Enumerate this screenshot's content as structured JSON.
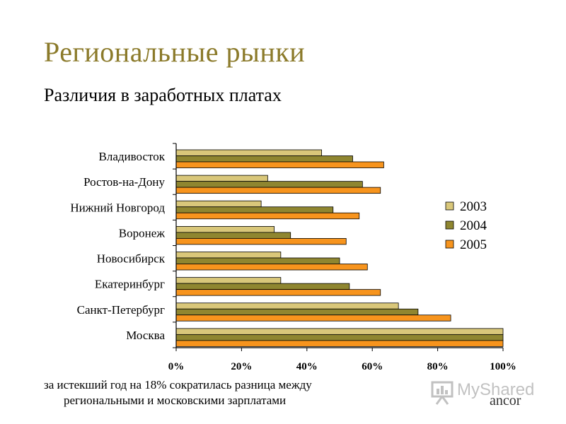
{
  "slide": {
    "title": "Региональные рынки",
    "subtitle": "Различия в заработных платах",
    "caption_line1": "за истекший год на 18% сократилась разница между",
    "caption_line2": "региональными и московскими зарплатами",
    "brand": "ancor",
    "watermark": "MyShared"
  },
  "chart_data": {
    "type": "bar",
    "orientation": "horizontal",
    "title": "",
    "xlabel": "",
    "ylabel": "",
    "categories": [
      "Владивосток",
      "Ростов-на-Дону",
      "Нижний Новгород",
      "Воронеж",
      "Новосибирск",
      "Екатеринбург",
      "Санкт-Петербург",
      "Москва"
    ],
    "series": [
      {
        "name": "2003",
        "color": "#d9c77a",
        "values": [
          44.5,
          28,
          26,
          30,
          32,
          32,
          68,
          100
        ]
      },
      {
        "name": "2004",
        "color": "#8f8630",
        "values": [
          54,
          57,
          48,
          35,
          50,
          53,
          74,
          100
        ]
      },
      {
        "name": "2005",
        "color": "#f7941d",
        "values": [
          63.5,
          62.5,
          56,
          52,
          58.5,
          62.5,
          84,
          100
        ]
      }
    ],
    "xlim": [
      0,
      100
    ],
    "xticks": [
      "0%",
      "20%",
      "40%",
      "60%",
      "80%",
      "100%"
    ],
    "grid": false,
    "legend": "right"
  }
}
